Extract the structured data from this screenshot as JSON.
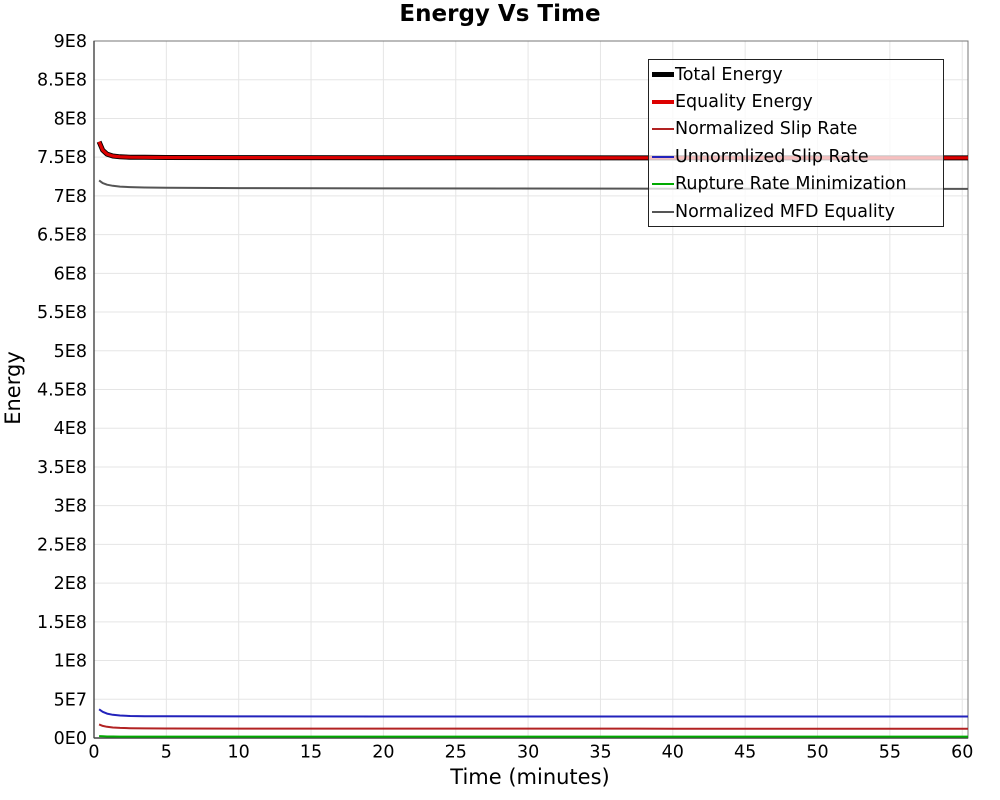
{
  "title": "Energy Vs Time",
  "chart_data": {
    "type": "line",
    "title": "Energy Vs Time",
    "xlabel": "Time (minutes)",
    "ylabel": "Energy",
    "x_range": [
      0,
      60.4
    ],
    "y_range": [
      0,
      900000000.0
    ],
    "grid": true,
    "legend_position": "top-right",
    "x_ticks": [
      0,
      5,
      10,
      15,
      20,
      25,
      30,
      35,
      40,
      45,
      50,
      55,
      60
    ],
    "y_ticks": [
      {
        "value": 0,
        "label": "0E0"
      },
      {
        "value": 50000000.0,
        "label": "5E7"
      },
      {
        "value": 100000000.0,
        "label": "1E8"
      },
      {
        "value": 150000000.0,
        "label": "1.5E8"
      },
      {
        "value": 200000000.0,
        "label": "2E8"
      },
      {
        "value": 250000000.0,
        "label": "2.5E8"
      },
      {
        "value": 300000000.0,
        "label": "3E8"
      },
      {
        "value": 350000000.0,
        "label": "3.5E8"
      },
      {
        "value": 400000000.0,
        "label": "4E8"
      },
      {
        "value": 450000000.0,
        "label": "4.5E8"
      },
      {
        "value": 500000000.0,
        "label": "5E8"
      },
      {
        "value": 550000000.0,
        "label": "5.5E8"
      },
      {
        "value": 600000000.0,
        "label": "6E8"
      },
      {
        "value": 650000000.0,
        "label": "6.5E8"
      },
      {
        "value": 700000000.0,
        "label": "7E8"
      },
      {
        "value": 750000000.0,
        "label": "7.5E8"
      },
      {
        "value": 800000000.0,
        "label": "8E8"
      },
      {
        "value": 850000000.0,
        "label": "8.5E8"
      },
      {
        "value": 900000000.0,
        "label": "9E8"
      }
    ],
    "x": [
      0.35,
      0.6,
      0.9,
      1.3,
      1.8,
      2.5,
      3.5,
      5,
      10,
      20,
      40,
      60.4
    ],
    "series": [
      {
        "name": "Total Energy",
        "color": "#000000",
        "width": 5,
        "values": [
          770000000.0,
          759000000.0,
          754000000.0,
          751500000.0,
          750500000.0,
          750000000.0,
          749800000.0,
          749600000.0,
          749500000.0,
          749300000.0,
          749100000.0,
          749000000.0
        ]
      },
      {
        "name": "Equality Energy",
        "color": "#dd0000",
        "width": 3.2,
        "values": [
          770000000.0,
          759000000.0,
          754000000.0,
          751500000.0,
          750500000.0,
          750000000.0,
          749800000.0,
          749600000.0,
          749500000.0,
          749300000.0,
          749100000.0,
          749000000.0
        ]
      },
      {
        "name": "Normalized Slip Rate",
        "color": "#b22222",
        "width": 2,
        "values": [
          17500000.0,
          15600000.0,
          14500000.0,
          13600000.0,
          13000000.0,
          12600000.0,
          12400000.0,
          12300000.0,
          12200000.0,
          12100000.0,
          12000000.0,
          12000000.0
        ]
      },
      {
        "name": "Unnormlized Slip Rate",
        "color": "#2222bb",
        "width": 2,
        "values": [
          37000000.0,
          33800000.0,
          31500000.0,
          30000000.0,
          29000000.0,
          28400000.0,
          28100000.0,
          28000000.0,
          27900000.0,
          27800000.0,
          27800000.0,
          27700000.0
        ]
      },
      {
        "name": "Rupture Rate Minimization",
        "color": "#00aa00",
        "width": 2,
        "values": [
          2500000.0,
          2200000.0,
          2000000.0,
          1900000.0,
          1800000.0,
          1800000.0,
          1800000.0,
          1800000.0,
          1800000.0,
          1800000.0,
          1800000.0,
          1800000.0
        ]
      },
      {
        "name": "Normalized MFD Equality",
        "color": "#555555",
        "width": 2,
        "values": [
          720000000.0,
          716500000.0,
          714500000.0,
          713000000.0,
          712000000.0,
          711300000.0,
          710800000.0,
          710500000.0,
          710000000.0,
          709700000.0,
          709300000.0,
          709000000.0
        ]
      }
    ],
    "style": {
      "grid_color": "#e5e5e5",
      "border_color": "#777777",
      "axis_color": "#444444",
      "background": "#ffffff"
    }
  }
}
